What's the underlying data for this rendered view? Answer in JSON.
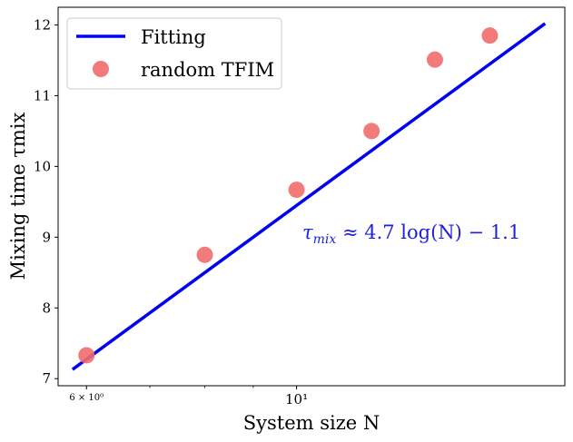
{
  "chart_data": {
    "type": "scatter",
    "x_scale": "log",
    "xlim": [
      5.6,
      19.2
    ],
    "ylim": [
      6.9,
      12.25
    ],
    "xlabel": "System size N",
    "ylabel": "Mixing time τmix",
    "x_ticks": [
      {
        "value": 6,
        "label": "6 × 10⁰"
      },
      {
        "value": 10,
        "label": "10¹"
      }
    ],
    "y_ticks": [
      7,
      8,
      9,
      10,
      11,
      12
    ],
    "grid": false,
    "legend_position": "top-left",
    "series": [
      {
        "name": "Fitting",
        "kind": "line",
        "color": "#0000ee",
        "x": [
          5.8,
          18.3
        ],
        "y": [
          7.13,
          12.02
        ]
      },
      {
        "name": "random TFIM",
        "kind": "scatter",
        "color": "#f26b6b",
        "x": [
          6,
          8,
          10,
          12,
          14,
          16
        ],
        "y": [
          7.33,
          8.75,
          9.67,
          10.5,
          11.51,
          11.85
        ]
      }
    ],
    "annotation": {
      "parts": [
        "τ",
        "mix",
        " ≈ 4.7 log(N) − 1.1"
      ],
      "color": "#1f1fe0"
    }
  }
}
